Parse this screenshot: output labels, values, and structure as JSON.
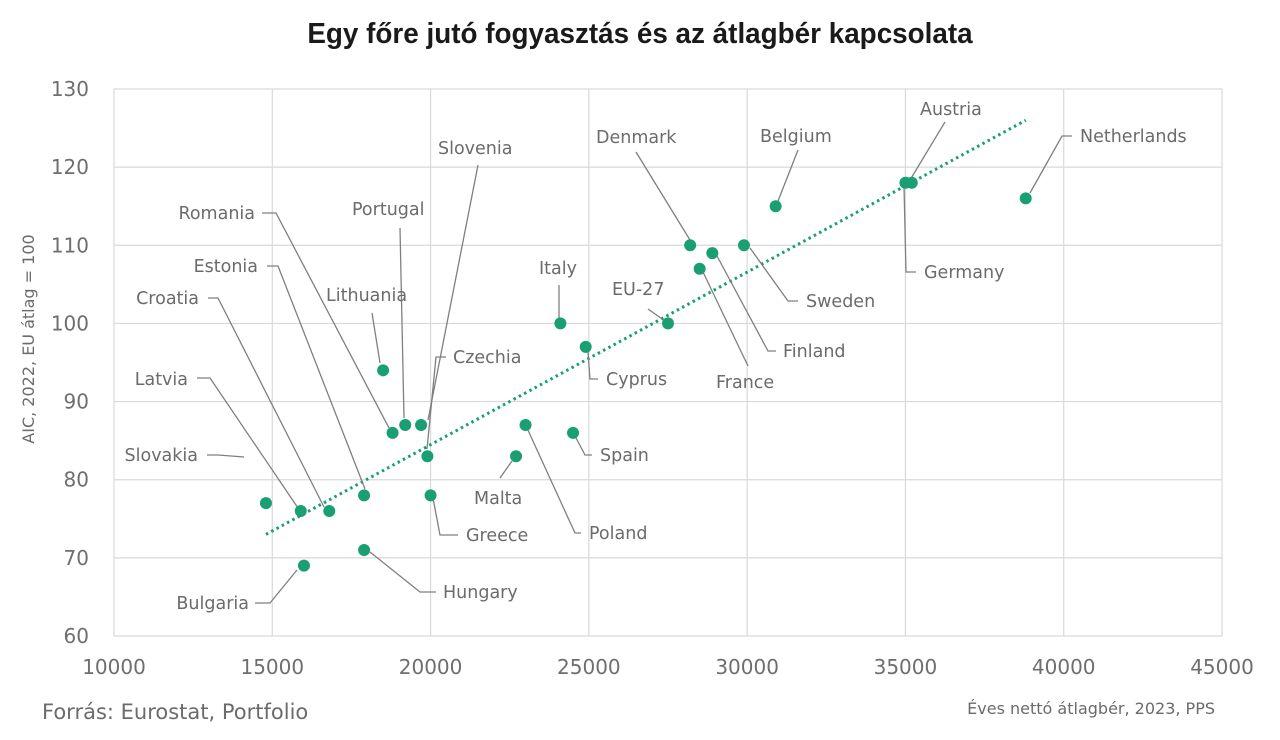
{
  "title": "Egy főre jutó fogyasztás és az átlagbér kapcsolata",
  "source": "Forrás: Eurostat, Portfolio",
  "colors": {
    "point": "#1a9e74",
    "trend": "#1a9e74",
    "grid": "#d9d9d9",
    "leader": "#7f7f7f"
  },
  "chart_data": {
    "type": "scatter",
    "title": "Egy főre jutó fogyasztás és az átlagbér kapcsolata",
    "xlabel": "Éves nettó átlagbér, 2023, PPS",
    "ylabel": "AIC, 2022, EU átlag = 100",
    "xlim": [
      10000,
      45000
    ],
    "ylim": [
      60,
      130
    ],
    "xticks": [
      10000,
      15000,
      20000,
      25000,
      30000,
      35000,
      40000,
      45000
    ],
    "yticks": [
      60,
      70,
      80,
      90,
      100,
      110,
      120,
      130
    ],
    "grid": true,
    "trendline": {
      "type": "linear",
      "style": "dotted",
      "x": [
        14800,
        38800
      ],
      "y": [
        73,
        126
      ]
    },
    "points": [
      {
        "label": "Slovakia",
        "x": 14800,
        "y": 77
      },
      {
        "label": "Latvia",
        "x": 15900,
        "y": 76
      },
      {
        "label": "Croatia",
        "x": 16800,
        "y": 76
      },
      {
        "label": "Bulgaria",
        "x": 16000,
        "y": 69
      },
      {
        "label": "Estonia",
        "x": 17900,
        "y": 78
      },
      {
        "label": "Hungary",
        "x": 17900,
        "y": 71
      },
      {
        "label": "Romania",
        "x": 18800,
        "y": 86
      },
      {
        "label": "Lithuania",
        "x": 18500,
        "y": 94
      },
      {
        "label": "Portugal",
        "x": 19200,
        "y": 87
      },
      {
        "label": "Slovenia",
        "x": 19700,
        "y": 87
      },
      {
        "label": "Czechia",
        "x": 19900,
        "y": 83
      },
      {
        "label": "Greece",
        "x": 20000,
        "y": 78
      },
      {
        "label": "Malta",
        "x": 22700,
        "y": 83
      },
      {
        "label": "Poland",
        "x": 23000,
        "y": 87
      },
      {
        "label": "Spain",
        "x": 24500,
        "y": 86
      },
      {
        "label": "Italy",
        "x": 24100,
        "y": 100
      },
      {
        "label": "Cyprus",
        "x": 24900,
        "y": 97
      },
      {
        "label": "EU-27",
        "x": 27500,
        "y": 100
      },
      {
        "label": "Denmark",
        "x": 28200,
        "y": 110
      },
      {
        "label": "France",
        "x": 28500,
        "y": 107
      },
      {
        "label": "Finland",
        "x": 28900,
        "y": 109
      },
      {
        "label": "Sweden",
        "x": 29900,
        "y": 110
      },
      {
        "label": "Belgium",
        "x": 30900,
        "y": 115
      },
      {
        "label": "Germany",
        "x": 35000,
        "y": 118
      },
      {
        "label": "Austria",
        "x": 35200,
        "y": 118
      },
      {
        "label": "Netherlands",
        "x": 38800,
        "y": 116
      }
    ]
  }
}
